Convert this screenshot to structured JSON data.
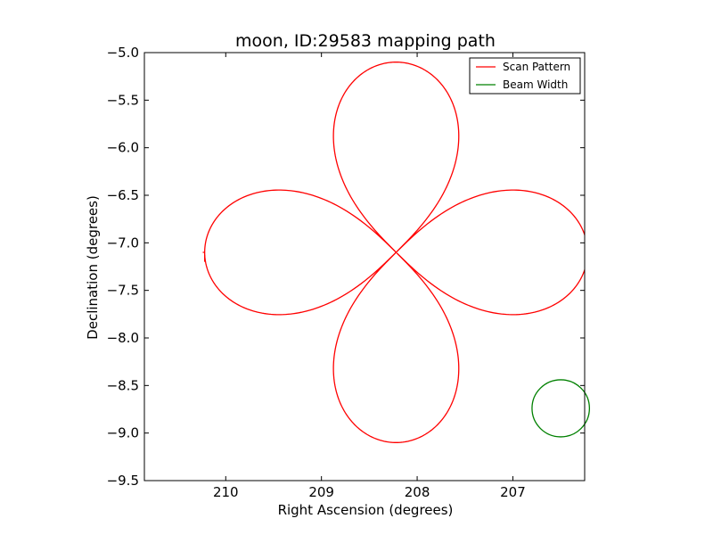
{
  "chart_data": {
    "type": "line",
    "title": "moon, ID:29583 mapping path",
    "xlabel": "Right Ascension (degrees)",
    "ylabel": "Declination (degrees)",
    "x_inverted": true,
    "xlim": [
      210.85,
      206.25
    ],
    "ylim": [
      -9.5,
      -5.0
    ],
    "x_ticks": [
      210,
      209,
      208,
      207
    ],
    "x_tick_labels": [
      "210",
      "209",
      "208",
      "207"
    ],
    "y_ticks": [
      -5.0,
      -5.5,
      -6.0,
      -6.5,
      -7.0,
      -7.5,
      -8.0,
      -8.5,
      -9.0,
      -9.5
    ],
    "y_tick_labels": [
      "−5.0",
      "−5.5",
      "−6.0",
      "−6.5",
      "−7.0",
      "−7.5",
      "−8.0",
      "−8.5",
      "−9.0",
      "−9.5"
    ],
    "grid": false,
    "legend_position": "top-right",
    "series": [
      {
        "name": "Scan Pattern",
        "kind": "four-petal rose curve",
        "color": "#ff0000",
        "center": [
          208.22,
          -7.1
        ],
        "petal_reach_ra_deg": 2.0,
        "petal_reach_dec_deg": 2.0,
        "petal_half_width_ra_deg": 0.55,
        "petal_half_width_dec_deg": 0.55,
        "start": [
          210.24,
          -7.1
        ],
        "end": [
          210.22,
          -7.2
        ]
      },
      {
        "name": "Beam Width",
        "kind": "circle",
        "color": "#008000",
        "center": [
          206.5,
          -8.74
        ],
        "radius_ra_deg": 0.3,
        "radius_dec_deg": 0.3
      }
    ]
  }
}
